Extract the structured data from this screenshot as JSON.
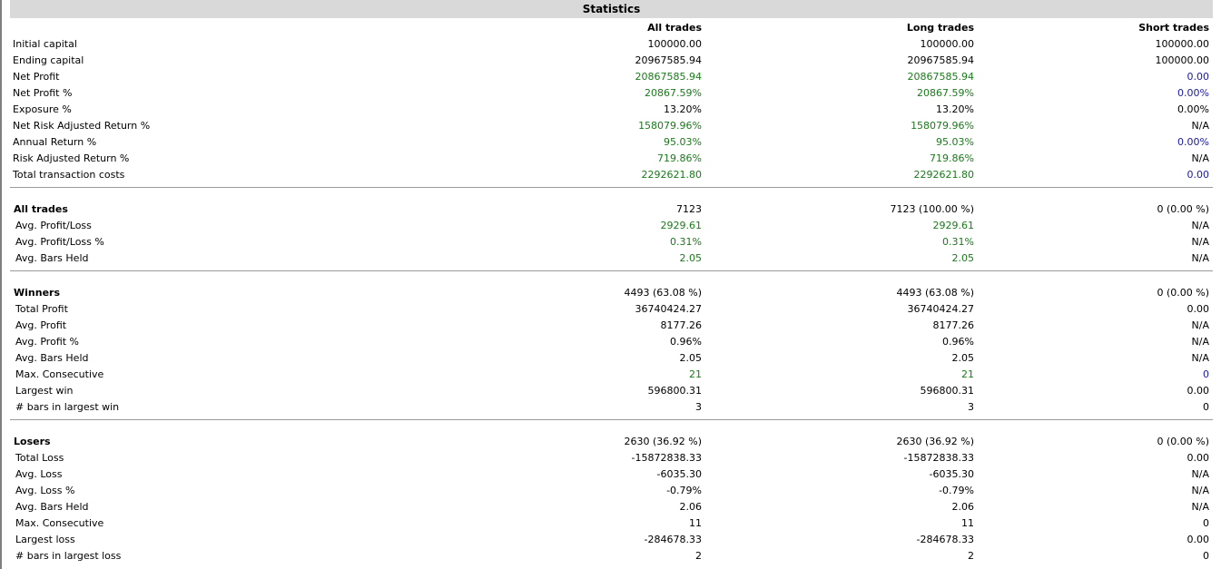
{
  "title": "Statistics",
  "columns": [
    "All trades",
    "Long trades",
    "Short trades"
  ],
  "sections": [
    {
      "heading": null,
      "rows": [
        {
          "label": "Initial capital",
          "values": [
            "100000.00",
            "100000.00",
            "100000.00"
          ],
          "colors": [
            "black",
            "black",
            "black"
          ]
        },
        {
          "label": "Ending capital",
          "values": [
            "20967585.94",
            "20967585.94",
            "100000.00"
          ],
          "colors": [
            "black",
            "black",
            "black"
          ]
        },
        {
          "label": "Net Profit",
          "values": [
            "20867585.94",
            "20867585.94",
            "0.00"
          ],
          "colors": [
            "green",
            "green",
            "blue"
          ]
        },
        {
          "label": "Net Profit %",
          "values": [
            "20867.59%",
            "20867.59%",
            "0.00%"
          ],
          "colors": [
            "green",
            "green",
            "blue"
          ]
        },
        {
          "label": "Exposure %",
          "values": [
            "13.20%",
            "13.20%",
            "0.00%"
          ],
          "colors": [
            "black",
            "black",
            "black"
          ]
        },
        {
          "label": "Net Risk Adjusted Return %",
          "values": [
            "158079.96%",
            "158079.96%",
            "N/A"
          ],
          "colors": [
            "green",
            "green",
            "black"
          ]
        },
        {
          "label": "Annual Return %",
          "values": [
            "95.03%",
            "95.03%",
            "0.00%"
          ],
          "colors": [
            "green",
            "green",
            "blue"
          ]
        },
        {
          "label": "Risk Adjusted Return %",
          "values": [
            "719.86%",
            "719.86%",
            "N/A"
          ],
          "colors": [
            "green",
            "green",
            "black"
          ]
        },
        {
          "label": "Total transaction costs",
          "values": [
            "2292621.80",
            "2292621.80",
            "0.00"
          ],
          "colors": [
            "green",
            "green",
            "blue"
          ]
        }
      ]
    },
    {
      "heading": {
        "label": "All trades",
        "values": [
          "7123",
          "7123 (100.00 %)",
          "0 (0.00 %)"
        ],
        "colors": [
          "black",
          "black",
          "black"
        ]
      },
      "rows": [
        {
          "label": "Avg. Profit/Loss",
          "values": [
            "2929.61",
            "2929.61",
            "N/A"
          ],
          "colors": [
            "green",
            "green",
            "black"
          ]
        },
        {
          "label": "Avg. Profit/Loss %",
          "values": [
            "0.31%",
            "0.31%",
            "N/A"
          ],
          "colors": [
            "green",
            "green",
            "black"
          ]
        },
        {
          "label": "Avg. Bars Held",
          "values": [
            "2.05",
            "2.05",
            "N/A"
          ],
          "colors": [
            "green",
            "green",
            "black"
          ]
        }
      ]
    },
    {
      "heading": {
        "label": "Winners",
        "values": [
          "4493 (63.08 %)",
          "4493 (63.08 %)",
          "0 (0.00 %)"
        ],
        "colors": [
          "black",
          "black",
          "black"
        ]
      },
      "rows": [
        {
          "label": "Total Profit",
          "values": [
            "36740424.27",
            "36740424.27",
            "0.00"
          ],
          "colors": [
            "black",
            "black",
            "black"
          ]
        },
        {
          "label": "Avg. Profit",
          "values": [
            "8177.26",
            "8177.26",
            "N/A"
          ],
          "colors": [
            "black",
            "black",
            "black"
          ]
        },
        {
          "label": "Avg. Profit %",
          "values": [
            "0.96%",
            "0.96%",
            "N/A"
          ],
          "colors": [
            "black",
            "black",
            "black"
          ]
        },
        {
          "label": "Avg. Bars Held",
          "values": [
            "2.05",
            "2.05",
            "N/A"
          ],
          "colors": [
            "black",
            "black",
            "black"
          ]
        },
        {
          "label": "Max. Consecutive",
          "values": [
            "21",
            "21",
            "0"
          ],
          "colors": [
            "green",
            "green",
            "blue"
          ]
        },
        {
          "label": "Largest win",
          "values": [
            "596800.31",
            "596800.31",
            "0.00"
          ],
          "colors": [
            "black",
            "black",
            "black"
          ]
        },
        {
          "label": "# bars in largest win",
          "values": [
            "3",
            "3",
            "0"
          ],
          "colors": [
            "black",
            "black",
            "black"
          ]
        }
      ]
    },
    {
      "heading": {
        "label": "Losers",
        "values": [
          "2630 (36.92 %)",
          "2630 (36.92 %)",
          "0 (0.00 %)"
        ],
        "colors": [
          "black",
          "black",
          "black"
        ]
      },
      "rows": [
        {
          "label": "Total Loss",
          "values": [
            "-15872838.33",
            "-15872838.33",
            "0.00"
          ],
          "colors": [
            "black",
            "black",
            "black"
          ]
        },
        {
          "label": "Avg. Loss",
          "values": [
            "-6035.30",
            "-6035.30",
            "N/A"
          ],
          "colors": [
            "black",
            "black",
            "black"
          ]
        },
        {
          "label": "Avg. Loss %",
          "values": [
            "-0.79%",
            "-0.79%",
            "N/A"
          ],
          "colors": [
            "black",
            "black",
            "black"
          ]
        },
        {
          "label": "Avg. Bars Held",
          "values": [
            "2.06",
            "2.06",
            "N/A"
          ],
          "colors": [
            "black",
            "black",
            "black"
          ]
        },
        {
          "label": "Max. Consecutive",
          "values": [
            "11",
            "11",
            "0"
          ],
          "colors": [
            "black",
            "black",
            "black"
          ]
        },
        {
          "label": "Largest loss",
          "values": [
            "-284678.33",
            "-284678.33",
            "0.00"
          ],
          "colors": [
            "black",
            "black",
            "black"
          ]
        },
        {
          "label": "# bars in largest loss",
          "values": [
            "2",
            "2",
            "0"
          ],
          "colors": [
            "black",
            "black",
            "black"
          ]
        }
      ]
    }
  ]
}
